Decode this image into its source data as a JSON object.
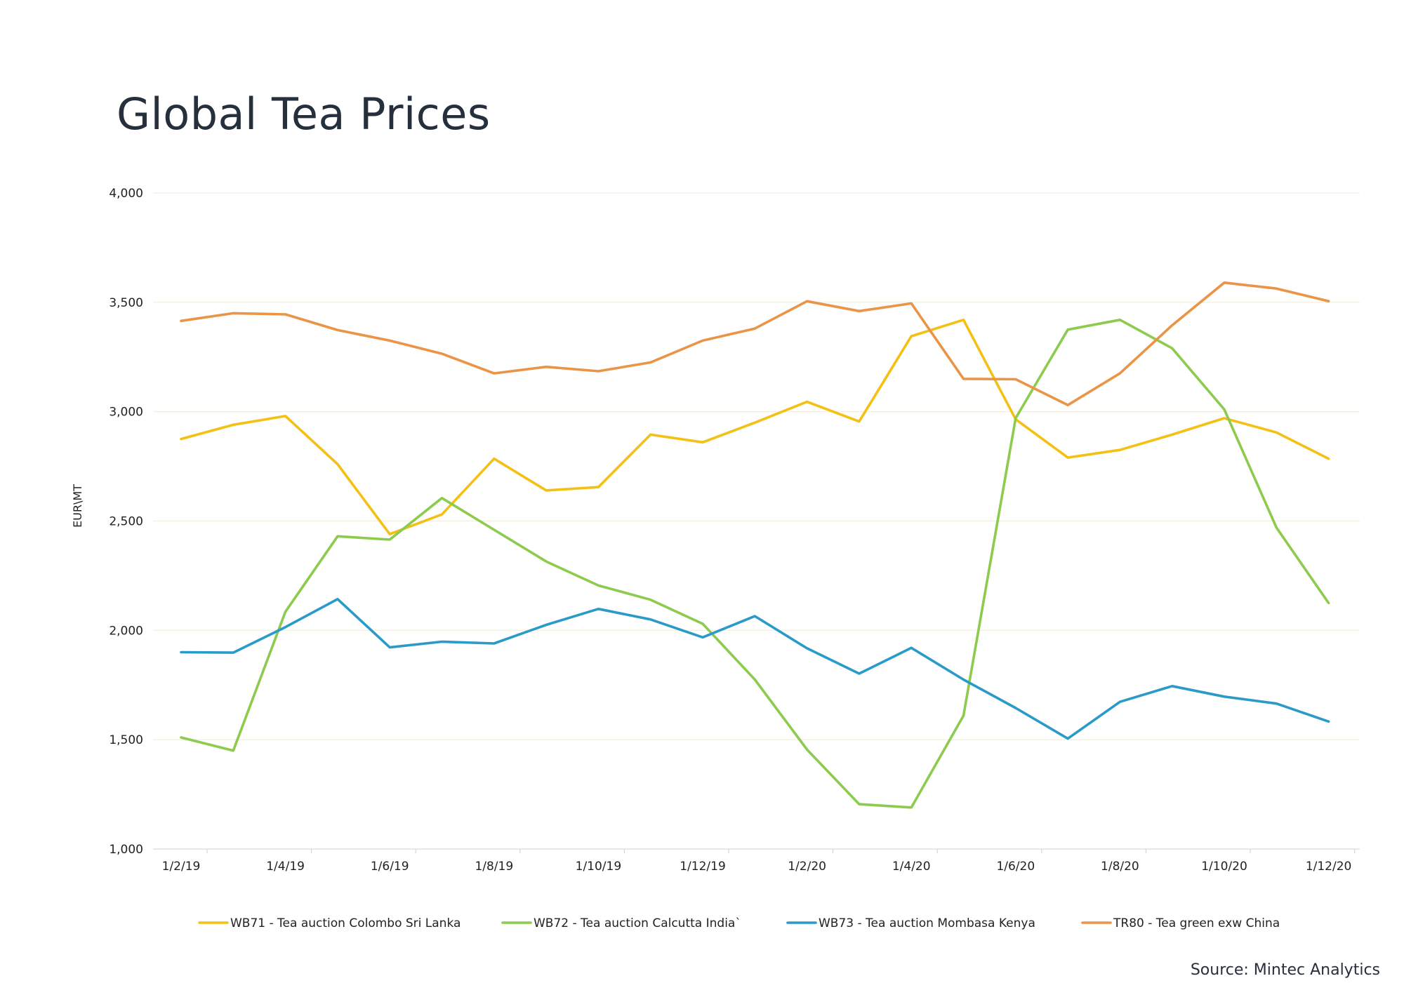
{
  "title": "Global Tea Prices",
  "source": "Source: Mintec Analytics",
  "chart_data": {
    "type": "line",
    "title": "Global Tea Prices",
    "ylabel": "EUR\\MT",
    "xlabel": "",
    "ylim": [
      1000,
      4000
    ],
    "yticks": [
      "1,000",
      "1,500",
      "2,000",
      "2,500",
      "3,000",
      "3,500",
      "4,000"
    ],
    "ytick_values": [
      1000,
      1500,
      2000,
      2500,
      3000,
      3500,
      4000
    ],
    "x": [
      "1/2/19",
      "1/3/19",
      "1/4/19",
      "1/5/19",
      "1/6/19",
      "1/7/19",
      "1/8/19",
      "1/9/19",
      "1/10/19",
      "1/11/19",
      "1/12/19",
      "1/1/20",
      "1/2/20",
      "1/3/20",
      "1/4/20",
      "1/5/20",
      "1/6/20",
      "1/7/20",
      "1/8/20",
      "1/9/20",
      "1/10/20",
      "1/11/20",
      "1/12/20"
    ],
    "xtick_labels": [
      "1/2/19",
      "1/4/19",
      "1/6/19",
      "1/8/19",
      "1/10/19",
      "1/12/19",
      "1/2/20",
      "1/4/20",
      "1/6/20",
      "1/8/20",
      "1/10/20",
      "1/12/20"
    ],
    "grid": true,
    "legend_position": "bottom",
    "series": [
      {
        "name": "WB71 - Tea auction Colombo Sri Lanka",
        "color": "#f5c014",
        "values": [
          2875,
          2940,
          2980,
          2760,
          2440,
          2530,
          2785,
          2640,
          2655,
          2895,
          2860,
          2950,
          3045,
          2955,
          3345,
          3420,
          2965,
          2790,
          2825,
          2895,
          2970,
          2905,
          2785
        ]
      },
      {
        "name": "WB72 - Tea auction Calcutta India`",
        "color": "#8dcb4e",
        "values": [
          1510,
          1450,
          2085,
          2430,
          2415,
          2605,
          2460,
          2315,
          2205,
          2140,
          2030,
          1775,
          1455,
          1205,
          1190,
          1610,
          2970,
          3375,
          3420,
          3290,
          3010,
          2470,
          2125
        ]
      },
      {
        "name": "WB73 - Tea auction Mombasa Kenya",
        "color": "#2a9bc9",
        "values": [
          1900,
          1898,
          2015,
          2143,
          1922,
          1948,
          1940,
          2025,
          2098,
          2050,
          1968,
          2065,
          1918,
          1802,
          1920,
          1775,
          1645,
          1505,
          1673,
          1745,
          1697,
          1665,
          1583
        ]
      },
      {
        "name": "TR80 - Tea green exw China",
        "color": "#ea9447",
        "values": [
          3415,
          3450,
          3445,
          3373,
          3325,
          3265,
          3175,
          3205,
          3185,
          3225,
          3325,
          3380,
          3505,
          3460,
          3495,
          3150,
          3148,
          3030,
          3175,
          3395,
          3590,
          3563,
          3505
        ]
      }
    ]
  }
}
